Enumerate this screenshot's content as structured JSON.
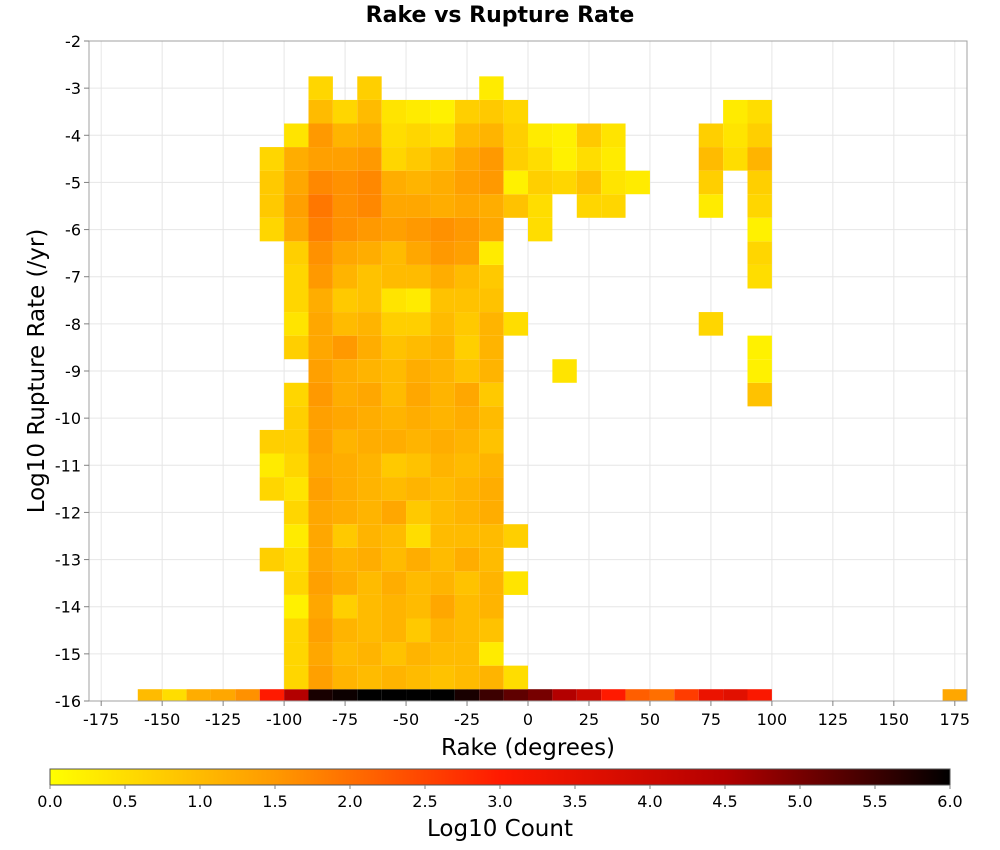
{
  "chart_data": {
    "type": "heatmap",
    "title": "Rake vs Rupture Rate",
    "xlabel": "Rake (degrees)",
    "ylabel": "Log10 Rupture Rate (/yr)",
    "colorbar_label": "Log10 Count",
    "xlim": [
      -180,
      180
    ],
    "ylim": [
      -16,
      -2
    ],
    "x_ticks": [
      -175,
      -150,
      -125,
      -100,
      -75,
      -50,
      -25,
      0,
      25,
      50,
      75,
      100,
      125,
      150,
      175
    ],
    "y_ticks": [
      -2,
      -3,
      -4,
      -5,
      -6,
      -7,
      -8,
      -9,
      -10,
      -11,
      -12,
      -13,
      -14,
      -15,
      -16
    ],
    "colorbar_range": [
      0,
      6
    ],
    "colorbar_ticks": [
      "0.0",
      "0.5",
      "1.0",
      "1.5",
      "2.0",
      "2.5",
      "3.0",
      "3.5",
      "4.0",
      "4.5",
      "5.0",
      "5.5",
      "6.0"
    ],
    "colormap": [
      "#ffff00",
      "#ff9900",
      "#ff1a00",
      "#b30000",
      "#000000"
    ],
    "bin_width_x": 10,
    "bin_width_y": 0.5,
    "grid": true,
    "cells": [
      [
        -155,
        -16,
        1.0
      ],
      [
        -145,
        -16,
        0.5
      ],
      [
        -135,
        -16,
        1.2
      ],
      [
        -125,
        -16,
        1.3
      ],
      [
        -115,
        -16,
        1.6
      ],
      [
        -105,
        -16,
        3.0
      ],
      [
        -95,
        -16,
        4.5
      ],
      [
        -85,
        -16,
        5.8
      ],
      [
        -75,
        -16,
        5.9
      ],
      [
        -65,
        -16,
        6.0
      ],
      [
        -55,
        -16,
        6.0
      ],
      [
        -45,
        -16,
        6.0
      ],
      [
        -35,
        -16,
        6.0
      ],
      [
        -25,
        -16,
        5.8
      ],
      [
        -15,
        -16,
        5.5
      ],
      [
        -5,
        -16,
        5.2
      ],
      [
        5,
        -16,
        5.0
      ],
      [
        15,
        -16,
        4.5
      ],
      [
        25,
        -16,
        4.0
      ],
      [
        35,
        -16,
        3.0
      ],
      [
        45,
        -16,
        2.2
      ],
      [
        55,
        -16,
        2.0
      ],
      [
        65,
        -16,
        2.6
      ],
      [
        75,
        -16,
        3.4
      ],
      [
        85,
        -16,
        3.6
      ],
      [
        95,
        -16,
        3.1
      ],
      [
        175,
        -16,
        1.3
      ],
      [
        -95,
        -15.5,
        0.6
      ],
      [
        -85,
        -15.5,
        1.4
      ],
      [
        -75,
        -15.5,
        1.1
      ],
      [
        -65,
        -15.5,
        1.0
      ],
      [
        -55,
        -15.5,
        1.1
      ],
      [
        -45,
        -15.5,
        1.0
      ],
      [
        -35,
        -15.5,
        0.9
      ],
      [
        -25,
        -15.5,
        1.0
      ],
      [
        -15,
        -15.5,
        1.1
      ],
      [
        -5,
        -15.5,
        0.5
      ],
      [
        -95,
        -15,
        0.6
      ],
      [
        -85,
        -15,
        1.3
      ],
      [
        -75,
        -15,
        1.0
      ],
      [
        -65,
        -15,
        1.1
      ],
      [
        -55,
        -15,
        0.9
      ],
      [
        -45,
        -15,
        1.1
      ],
      [
        -35,
        -15,
        1.0
      ],
      [
        -25,
        -15,
        1.0
      ],
      [
        -15,
        -15,
        0.3
      ],
      [
        -95,
        -14.5,
        0.6
      ],
      [
        -85,
        -14.5,
        1.4
      ],
      [
        -75,
        -14.5,
        1.1
      ],
      [
        -65,
        -14.5,
        1.0
      ],
      [
        -55,
        -14.5,
        1.1
      ],
      [
        -45,
        -14.5,
        0.8
      ],
      [
        -35,
        -14.5,
        1.1
      ],
      [
        -25,
        -14.5,
        1.0
      ],
      [
        -15,
        -14.5,
        0.9
      ],
      [
        -95,
        -14,
        0.2
      ],
      [
        -85,
        -14,
        1.3
      ],
      [
        -75,
        -14,
        0.7
      ],
      [
        -65,
        -14,
        1.0
      ],
      [
        -55,
        -14,
        1.1
      ],
      [
        -45,
        -14,
        1.0
      ],
      [
        -35,
        -14,
        1.3
      ],
      [
        -25,
        -14,
        1.0
      ],
      [
        -15,
        -14,
        1.1
      ],
      [
        -95,
        -13.5,
        0.6
      ],
      [
        -85,
        -13.5,
        1.4
      ],
      [
        -75,
        -13.5,
        1.2
      ],
      [
        -65,
        -13.5,
        1.0
      ],
      [
        -55,
        -13.5,
        1.2
      ],
      [
        -45,
        -13.5,
        1.0
      ],
      [
        -35,
        -13.5,
        1.1
      ],
      [
        -25,
        -13.5,
        0.9
      ],
      [
        -15,
        -13.5,
        1.1
      ],
      [
        -5,
        -13.5,
        0.4
      ],
      [
        -105,
        -13,
        0.7
      ],
      [
        -95,
        -13,
        0.5
      ],
      [
        -85,
        -13,
        1.3
      ],
      [
        -75,
        -13,
        1.1
      ],
      [
        -65,
        -13,
        1.2
      ],
      [
        -55,
        -13,
        1.0
      ],
      [
        -45,
        -13,
        1.2
      ],
      [
        -35,
        -13,
        1.0
      ],
      [
        -25,
        -13,
        1.2
      ],
      [
        -15,
        -13,
        1.0
      ],
      [
        -95,
        -12.5,
        0.3
      ],
      [
        -85,
        -12.5,
        1.3
      ],
      [
        -75,
        -12.5,
        0.8
      ],
      [
        -65,
        -12.5,
        1.1
      ],
      [
        -55,
        -12.5,
        1.0
      ],
      [
        -45,
        -12.5,
        0.5
      ],
      [
        -35,
        -12.5,
        1.0
      ],
      [
        -25,
        -12.5,
        1.0
      ],
      [
        -15,
        -12.5,
        1.0
      ],
      [
        -5,
        -12.5,
        0.7
      ],
      [
        -95,
        -12,
        0.6
      ],
      [
        -85,
        -12,
        1.3
      ],
      [
        -75,
        -12,
        1.2
      ],
      [
        -65,
        -12,
        1.1
      ],
      [
        -55,
        -12,
        1.3
      ],
      [
        -45,
        -12,
        0.8
      ],
      [
        -35,
        -12,
        1.0
      ],
      [
        -25,
        -12,
        1.1
      ],
      [
        -15,
        -12,
        1.2
      ],
      [
        -95,
        -11.5,
        0.4
      ],
      [
        -85,
        -11.5,
        1.4
      ],
      [
        -75,
        -11.5,
        1.2
      ],
      [
        -65,
        -11.5,
        1.1
      ],
      [
        -55,
        -11.5,
        1.0
      ],
      [
        -45,
        -11.5,
        1.1
      ],
      [
        -35,
        -11.5,
        1.0
      ],
      [
        -25,
        -11.5,
        1.1
      ],
      [
        -15,
        -11.5,
        1.2
      ],
      [
        -105,
        -11.5,
        0.6
      ],
      [
        -95,
        -11,
        0.6
      ],
      [
        -85,
        -11,
        1.3
      ],
      [
        -75,
        -11,
        1.2
      ],
      [
        -65,
        -11,
        1.1
      ],
      [
        -55,
        -11,
        0.8
      ],
      [
        -45,
        -11,
        0.9
      ],
      [
        -35,
        -11,
        1.1
      ],
      [
        -25,
        -11,
        1.0
      ],
      [
        -15,
        -11,
        1.1
      ],
      [
        -105,
        -10.5,
        0.7
      ],
      [
        -95,
        -10.5,
        0.7
      ],
      [
        -85,
        -10.5,
        1.4
      ],
      [
        -75,
        -10.5,
        1.1
      ],
      [
        -65,
        -10.5,
        1.2
      ],
      [
        -55,
        -10.5,
        1.2
      ],
      [
        -45,
        -10.5,
        1.1
      ],
      [
        -35,
        -10.5,
        1.2
      ],
      [
        -25,
        -10.5,
        1.1
      ],
      [
        -15,
        -10.5,
        0.9
      ],
      [
        -105,
        -11,
        0.3
      ],
      [
        -95,
        -10,
        0.7
      ],
      [
        -85,
        -10,
        1.4
      ],
      [
        -75,
        -10,
        1.3
      ],
      [
        -65,
        -10,
        1.2
      ],
      [
        -55,
        -10,
        1.1
      ],
      [
        -45,
        -10,
        1.2
      ],
      [
        -35,
        -10,
        1.1
      ],
      [
        -25,
        -10,
        1.2
      ],
      [
        -15,
        -10,
        1.0
      ],
      [
        -95,
        -9.5,
        0.6
      ],
      [
        -85,
        -9.5,
        1.5
      ],
      [
        -75,
        -9.5,
        1.2
      ],
      [
        -65,
        -9.5,
        1.3
      ],
      [
        -55,
        -9.5,
        1.0
      ],
      [
        -45,
        -9.5,
        1.3
      ],
      [
        -35,
        -9.5,
        1.1
      ],
      [
        -25,
        -9.5,
        1.3
      ],
      [
        -15,
        -9.5,
        0.8
      ],
      [
        95,
        -9.5,
        0.9
      ],
      [
        -85,
        -9,
        1.4
      ],
      [
        -75,
        -9,
        1.2
      ],
      [
        -65,
        -9,
        1.1
      ],
      [
        -55,
        -9,
        1.0
      ],
      [
        -45,
        -9,
        1.2
      ],
      [
        -35,
        -9,
        1.1
      ],
      [
        -25,
        -9,
        0.9
      ],
      [
        -15,
        -9,
        1.1
      ],
      [
        15,
        -9,
        0.4
      ],
      [
        95,
        -9,
        0.2
      ],
      [
        -95,
        -8.5,
        0.7
      ],
      [
        -85,
        -8.5,
        1.3
      ],
      [
        -75,
        -8.5,
        1.5
      ],
      [
        -65,
        -8.5,
        1.2
      ],
      [
        -55,
        -8.5,
        0.9
      ],
      [
        -45,
        -8.5,
        1.0
      ],
      [
        -35,
        -8.5,
        1.1
      ],
      [
        -25,
        -8.5,
        0.7
      ],
      [
        -15,
        -8.5,
        1.1
      ],
      [
        95,
        -8.5,
        0.2
      ],
      [
        -95,
        -8,
        0.4
      ],
      [
        -85,
        -8,
        1.3
      ],
      [
        -75,
        -8,
        1.0
      ],
      [
        -65,
        -8,
        1.1
      ],
      [
        -55,
        -8,
        0.7
      ],
      [
        -45,
        -8,
        0.7
      ],
      [
        -35,
        -8,
        1.0
      ],
      [
        -25,
        -8,
        0.8
      ],
      [
        -15,
        -8,
        1.1
      ],
      [
        -5,
        -8,
        0.5
      ],
      [
        75,
        -8,
        0.6
      ],
      [
        -95,
        -7.5,
        0.6
      ],
      [
        -85,
        -7.5,
        1.2
      ],
      [
        -75,
        -7.5,
        0.8
      ],
      [
        -65,
        -7.5,
        0.9
      ],
      [
        -55,
        -7.5,
        0.4
      ],
      [
        -45,
        -7.5,
        0.3
      ],
      [
        -35,
        -7.5,
        0.9
      ],
      [
        -25,
        -7.5,
        0.9
      ],
      [
        -15,
        -7.5,
        0.9
      ],
      [
        -95,
        -7,
        0.6
      ],
      [
        -85,
        -7,
        1.5
      ],
      [
        -75,
        -7,
        1.1
      ],
      [
        -65,
        -7,
        0.9
      ],
      [
        -55,
        -7,
        1.0
      ],
      [
        -45,
        -7,
        1.0
      ],
      [
        -35,
        -7,
        1.2
      ],
      [
        -25,
        -7,
        1.0
      ],
      [
        -15,
        -7,
        0.8
      ],
      [
        95,
        -7,
        0.5
      ],
      [
        -95,
        -6.5,
        0.7
      ],
      [
        -85,
        -6.5,
        1.6
      ],
      [
        -75,
        -6.5,
        1.3
      ],
      [
        -65,
        -6.5,
        1.2
      ],
      [
        -55,
        -6.5,
        1.0
      ],
      [
        -45,
        -6.5,
        1.3
      ],
      [
        -35,
        -6.5,
        1.5
      ],
      [
        -25,
        -6.5,
        1.4
      ],
      [
        -15,
        -6.5,
        0.3
      ],
      [
        95,
        -6.5,
        0.6
      ],
      [
        -105,
        -6,
        0.6
      ],
      [
        -95,
        -6,
        1.3
      ],
      [
        -85,
        -6,
        1.8
      ],
      [
        -75,
        -6,
        1.6
      ],
      [
        -65,
        -6,
        1.5
      ],
      [
        -55,
        -6,
        1.4
      ],
      [
        -45,
        -6,
        1.5
      ],
      [
        -35,
        -6,
        1.6
      ],
      [
        -25,
        -6,
        1.5
      ],
      [
        -15,
        -6,
        1.3
      ],
      [
        5,
        -6,
        0.5
      ],
      [
        95,
        -6,
        0.2
      ],
      [
        -105,
        -5.5,
        0.8
      ],
      [
        -95,
        -5.5,
        1.4
      ],
      [
        -85,
        -5.5,
        1.9
      ],
      [
        -75,
        -5.5,
        1.6
      ],
      [
        -65,
        -5.5,
        1.7
      ],
      [
        -55,
        -5.5,
        1.3
      ],
      [
        -45,
        -5.5,
        1.3
      ],
      [
        -35,
        -5.5,
        1.2
      ],
      [
        -25,
        -5.5,
        1.3
      ],
      [
        -15,
        -5.5,
        1.2
      ],
      [
        -5,
        -5.5,
        0.9
      ],
      [
        5,
        -5.5,
        0.5
      ],
      [
        25,
        -5.5,
        0.6
      ],
      [
        35,
        -5.5,
        0.6
      ],
      [
        75,
        -5.5,
        0.3
      ],
      [
        95,
        -5.5,
        0.6
      ],
      [
        -105,
        -5,
        0.8
      ],
      [
        -95,
        -5,
        1.3
      ],
      [
        -85,
        -5,
        1.7
      ],
      [
        -75,
        -5,
        1.6
      ],
      [
        -65,
        -5,
        1.7
      ],
      [
        -55,
        -5,
        1.2
      ],
      [
        -45,
        -5,
        1.1
      ],
      [
        -35,
        -5,
        1.2
      ],
      [
        -25,
        -5,
        1.4
      ],
      [
        -15,
        -5,
        1.5
      ],
      [
        -5,
        -5,
        0.2
      ],
      [
        5,
        -5,
        0.7
      ],
      [
        15,
        -5,
        0.6
      ],
      [
        25,
        -5,
        0.9
      ],
      [
        35,
        -5,
        0.4
      ],
      [
        45,
        -5,
        0.3
      ],
      [
        75,
        -5,
        0.7
      ],
      [
        95,
        -5,
        0.7
      ],
      [
        -105,
        -4.5,
        0.6
      ],
      [
        -95,
        -4.5,
        1.2
      ],
      [
        -85,
        -4.5,
        1.4
      ],
      [
        -75,
        -4.5,
        1.4
      ],
      [
        -65,
        -4.5,
        1.5
      ],
      [
        -55,
        -4.5,
        0.6
      ],
      [
        -45,
        -4.5,
        0.8
      ],
      [
        -35,
        -4.5,
        1.0
      ],
      [
        -25,
        -4.5,
        1.3
      ],
      [
        -15,
        -4.5,
        1.5
      ],
      [
        -5,
        -4.5,
        0.7
      ],
      [
        5,
        -4.5,
        0.5
      ],
      [
        15,
        -4.5,
        0.2
      ],
      [
        25,
        -4.5,
        0.5
      ],
      [
        35,
        -4.5,
        0.3
      ],
      [
        75,
        -4.5,
        1.0
      ],
      [
        85,
        -4.5,
        0.5
      ],
      [
        95,
        -4.5,
        1.1
      ],
      [
        -95,
        -4,
        0.4
      ],
      [
        -85,
        -4,
        1.5
      ],
      [
        -75,
        -4,
        1.1
      ],
      [
        -65,
        -4,
        1.2
      ],
      [
        -55,
        -4,
        0.5
      ],
      [
        -45,
        -4,
        0.6
      ],
      [
        -35,
        -4,
        0.5
      ],
      [
        -25,
        -4,
        1.0
      ],
      [
        -15,
        -4,
        1.1
      ],
      [
        -5,
        -4,
        0.7
      ],
      [
        5,
        -4,
        0.3
      ],
      [
        15,
        -4,
        0.2
      ],
      [
        25,
        -4,
        0.8
      ],
      [
        35,
        -4,
        0.4
      ],
      [
        75,
        -4,
        0.7
      ],
      [
        85,
        -4,
        0.4
      ],
      [
        95,
        -4,
        0.7
      ],
      [
        -85,
        -3.5,
        1.0
      ],
      [
        -75,
        -3.5,
        0.6
      ],
      [
        -65,
        -3.5,
        1.0
      ],
      [
        -55,
        -3.5,
        0.4
      ],
      [
        -45,
        -3.5,
        0.3
      ],
      [
        -35,
        -3.5,
        0.2
      ],
      [
        -25,
        -3.5,
        0.7
      ],
      [
        -15,
        -3.5,
        0.8
      ],
      [
        -5,
        -3.5,
        0.6
      ],
      [
        85,
        -3.5,
        0.3
      ],
      [
        95,
        -3.5,
        0.5
      ],
      [
        -85,
        -3,
        0.6
      ],
      [
        -65,
        -3,
        0.7
      ],
      [
        -15,
        -3,
        0.3
      ]
    ]
  }
}
